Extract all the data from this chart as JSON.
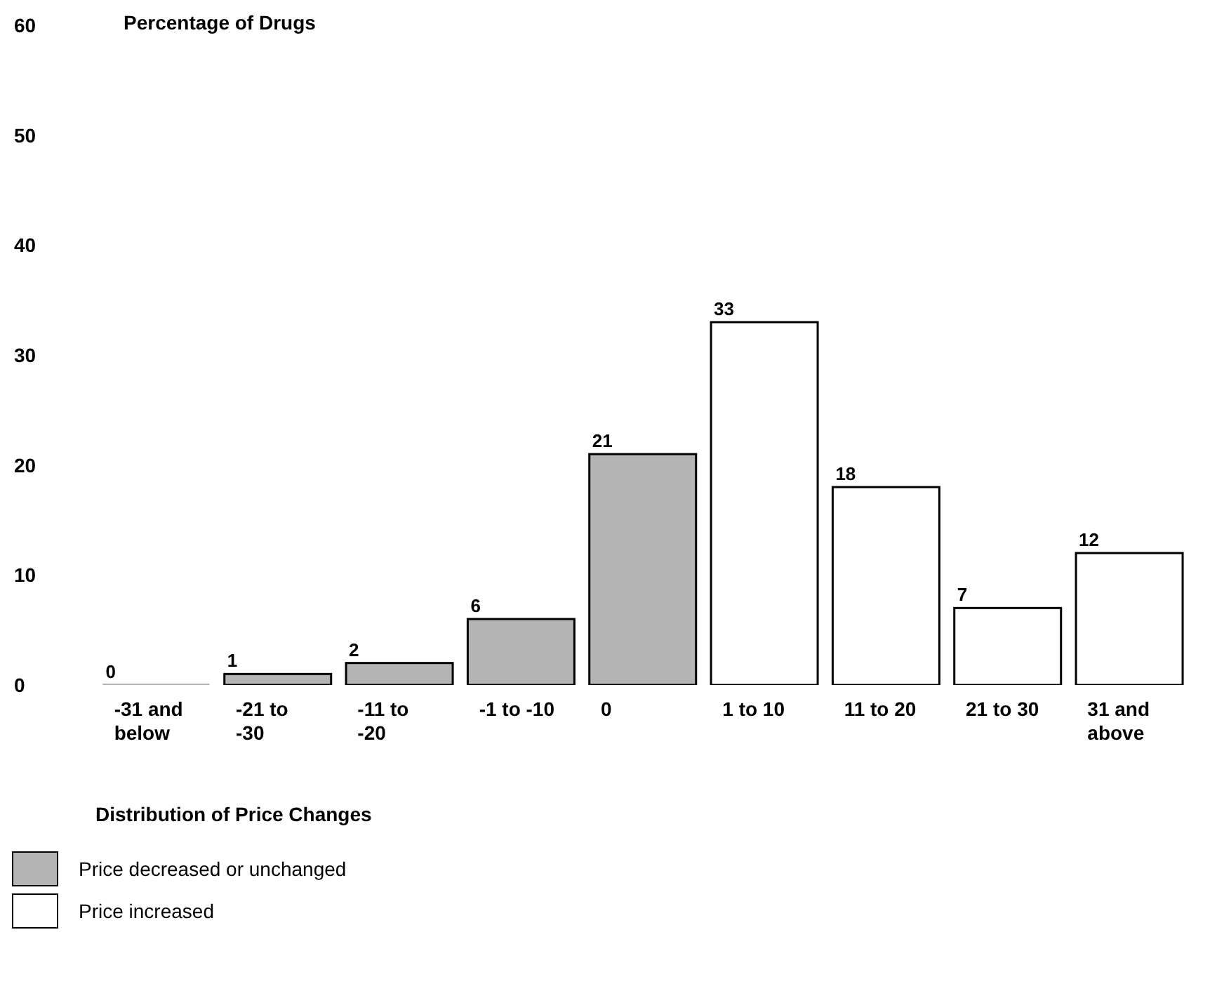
{
  "chart_data": {
    "type": "bar",
    "ylabel": "Percentage of Drugs",
    "xlabel": "Distribution of Price Changes",
    "categories": [
      "-31 and below",
      "-21 to -30",
      "-11 to -20",
      "-1 to -10",
      "0",
      "1 to 10",
      "11 to 20",
      "21 to 30",
      "31 and above"
    ],
    "stacked": true,
    "series": [
      {
        "name": "Price decreased or unchanged",
        "color": "#b4b4b4",
        "values": [
          0,
          1,
          2,
          6,
          21,
          null,
          null,
          null,
          null
        ]
      },
      {
        "name": "Price increased",
        "color": "#ffffff",
        "values": [
          null,
          null,
          null,
          null,
          null,
          33,
          18,
          7,
          12
        ]
      }
    ],
    "ylim": [
      0,
      60
    ],
    "yticks": [
      0,
      10,
      20,
      30,
      40,
      50,
      60
    ],
    "grid": false,
    "data_labels": true,
    "legend": "bottom left"
  }
}
